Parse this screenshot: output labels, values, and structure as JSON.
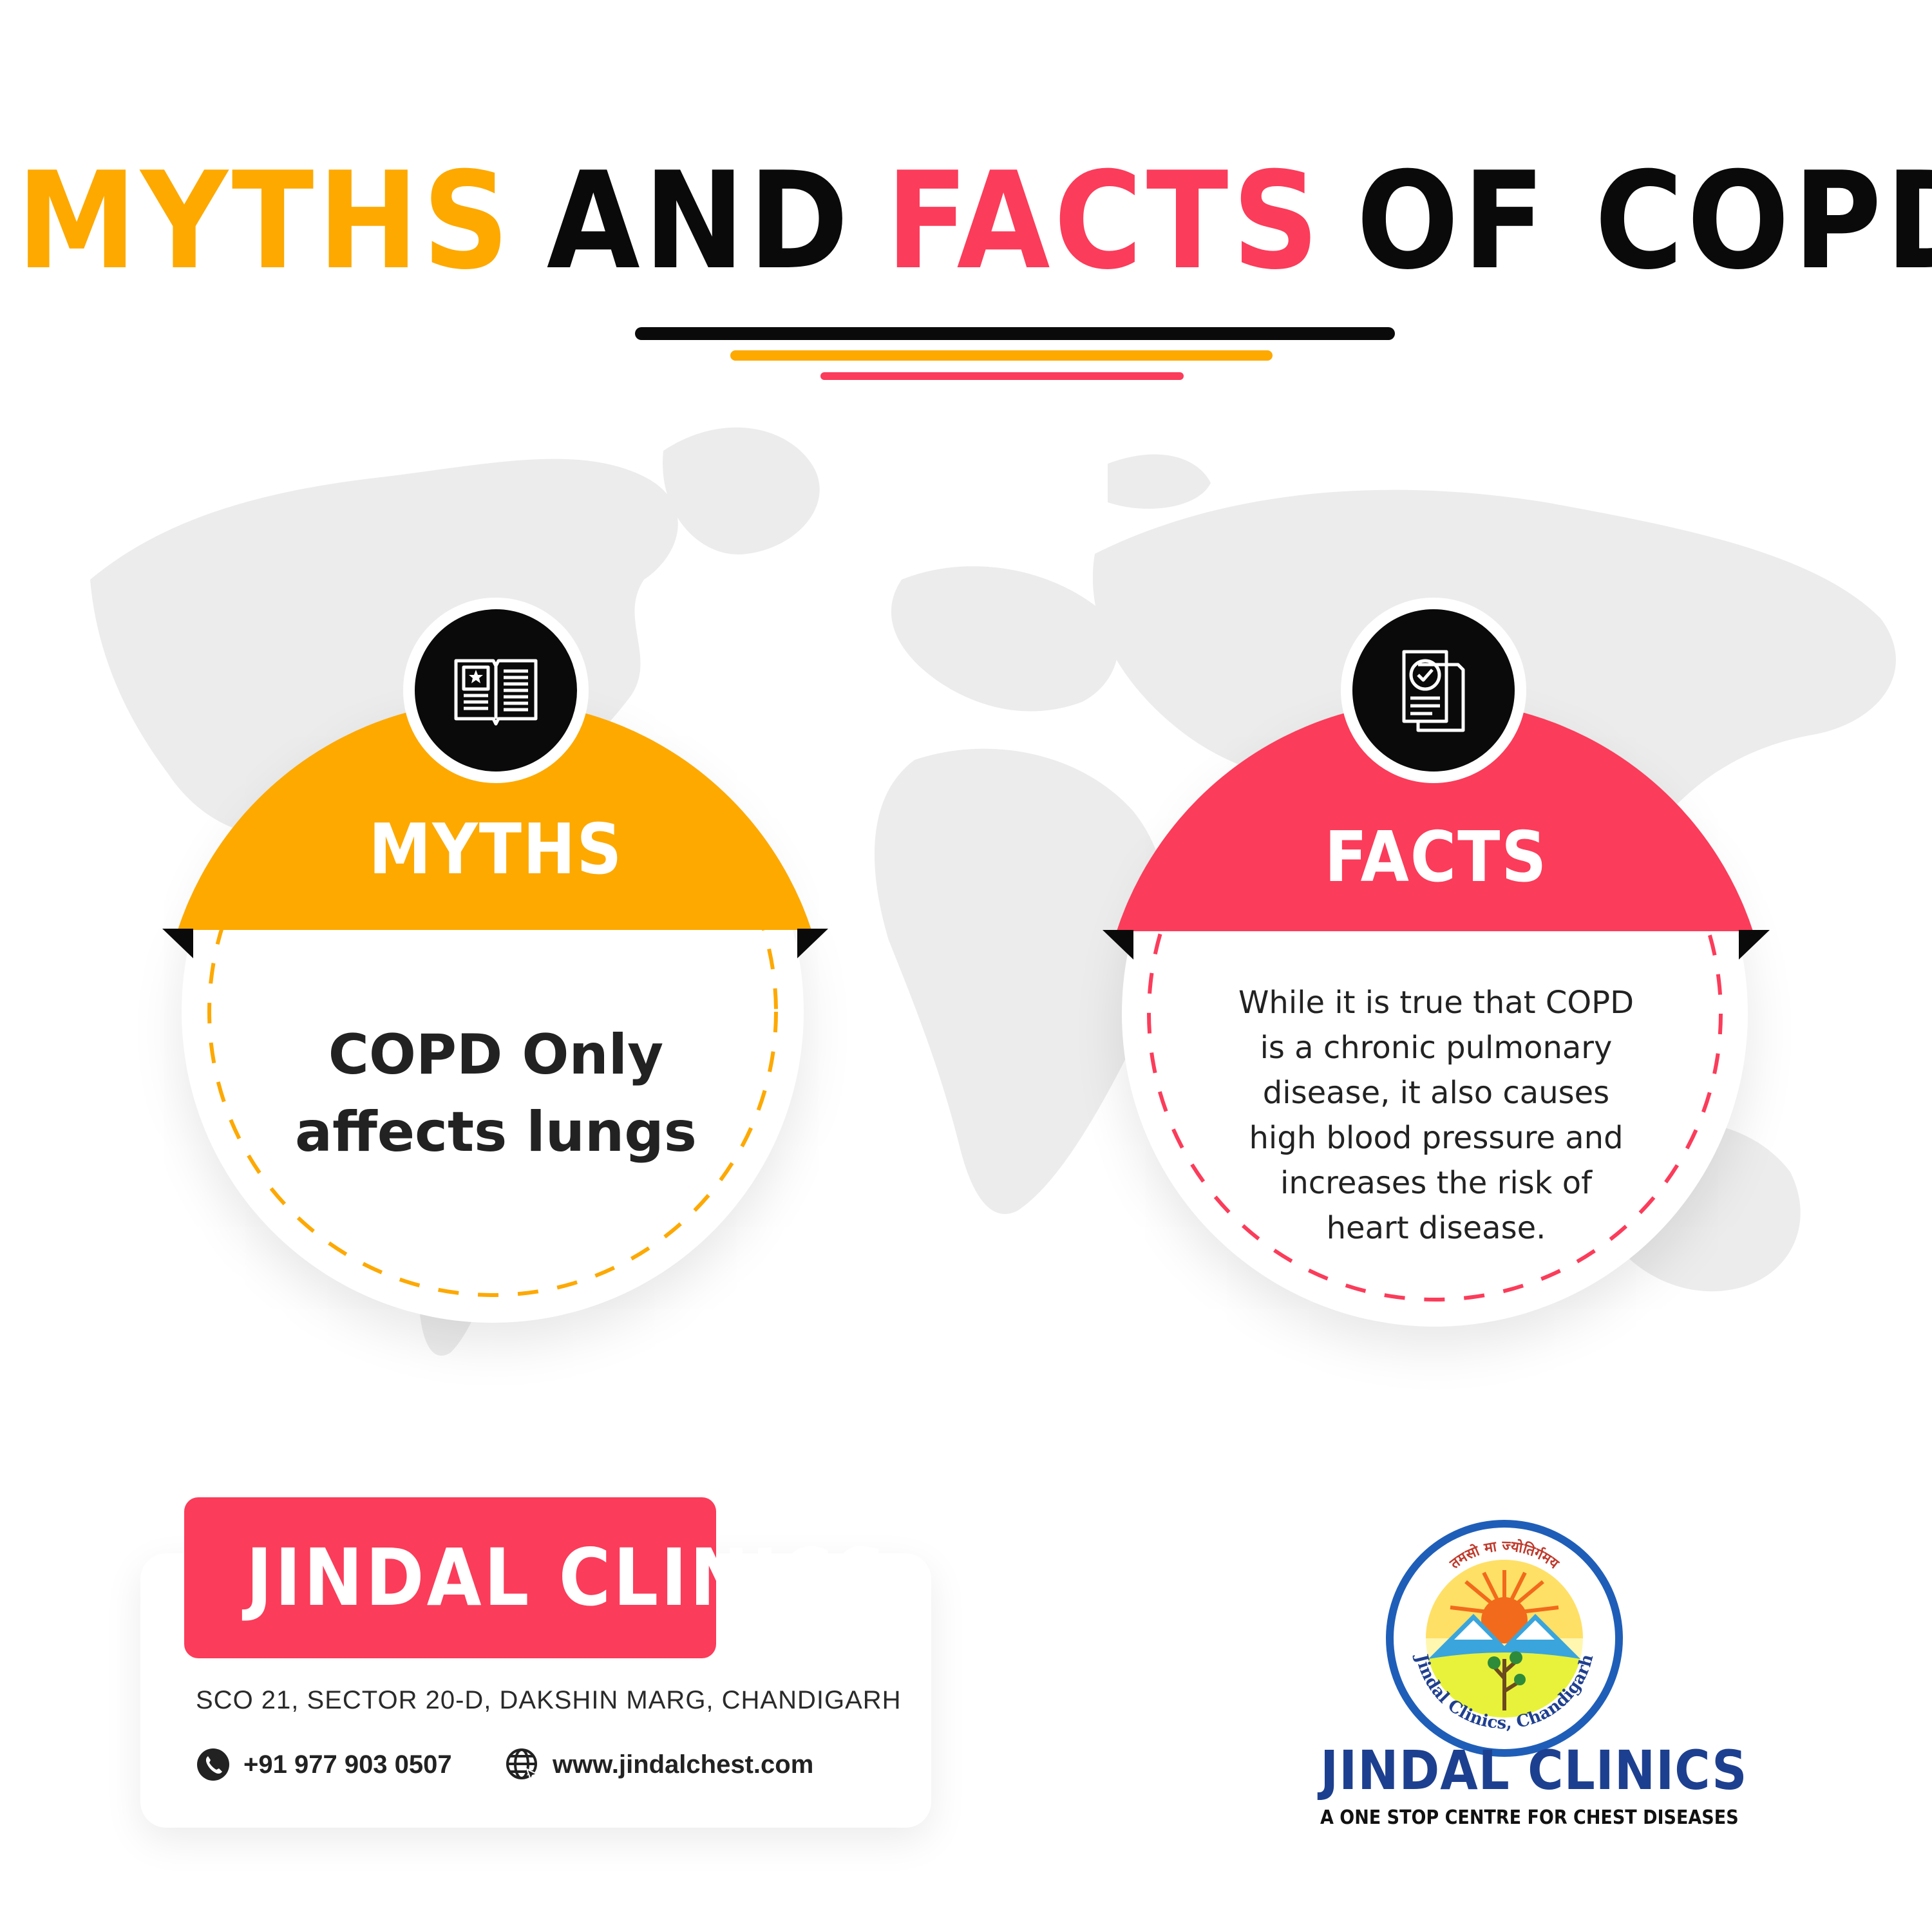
{
  "title": {
    "word1": "MYTHS",
    "word2": "AND",
    "word3": "FACTS",
    "word4": "OF COPD"
  },
  "colors": {
    "myths": "#fda900",
    "facts": "#fb3c5a",
    "dark": "#0a0a0a"
  },
  "myths_card": {
    "icon": "open-book-icon",
    "heading": "MYTHS",
    "text_line1": "COPD Only",
    "text_line2": "affects lungs"
  },
  "facts_card": {
    "icon": "verified-document-icon",
    "heading": "FACTS",
    "lines": [
      "While it is true that COPD",
      "is a chronic pulmonary",
      "disease, it also causes",
      "high blood pressure and",
      "increases the risk of",
      "heart disease."
    ]
  },
  "contact": {
    "clinic_name": "JINDAL CLINICS",
    "address": "SCO 21, SECTOR 20-D, DAKSHIN MARG, CHANDIGARH",
    "phone_icon": "phone-icon",
    "phone": "+91 977 903 0507",
    "web_icon": "globe-icon",
    "website": "www.jindalchest.com"
  },
  "logo": {
    "top_text": "तमसो मा ज्योतिर्गमय",
    "ring_text": "Jindal Clinics, Chandigarh",
    "name": "JINDAL CLINICS",
    "tagline": "A ONE STOP CENTRE FOR CHEST DISEASES"
  }
}
